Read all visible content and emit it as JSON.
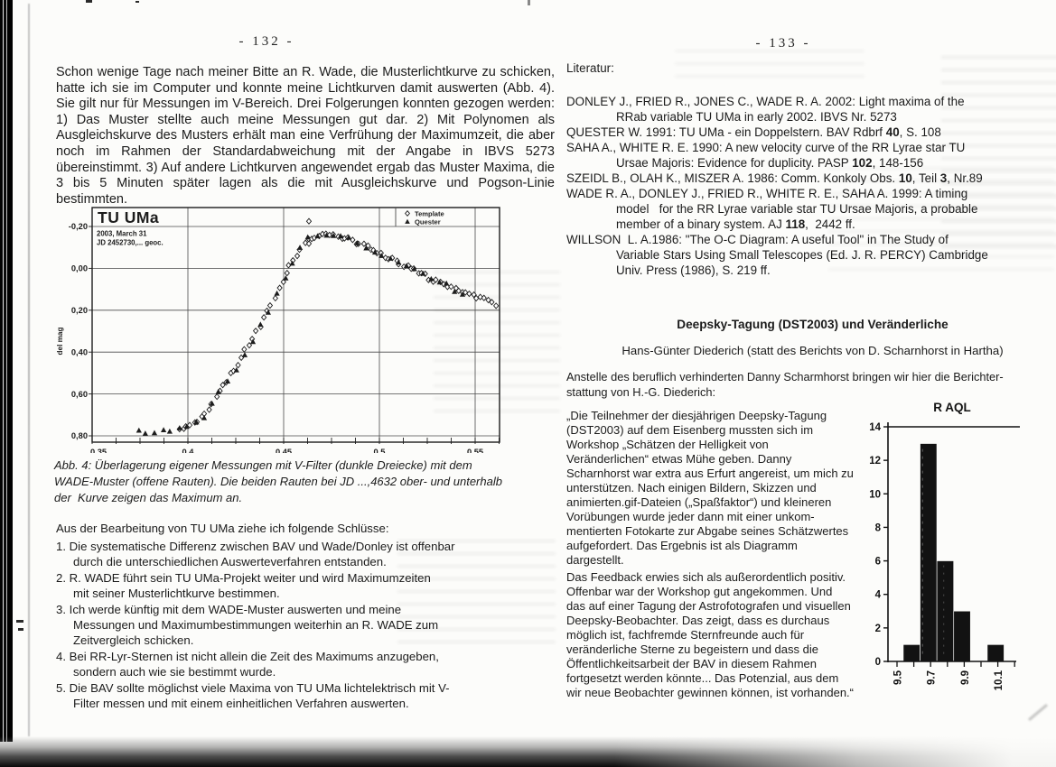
{
  "page_left": {
    "page_number": "- 132 -",
    "intro_paragraph": "Schon wenige Tage nach meiner Bitte an R. Wade, die Musterlichtkurve zu schicken, hatte ich sie im Computer und konnte meine Lichtkurven damit auswerten (Abb. 4). Sie gilt nur für Messungen im V-Bereich. Drei Folgerungen konnten gezogen werden: 1) Das Muster stellte auch meine Messungen gut dar. 2) Mit Polynomen als Ausgleichskurve des Musters erhält man eine Verfrühung der Maximumzeit, die aber noch im Rahmen der Standardabweichung mit der Angabe in IBVS 5273 übereinstimmt. 3) Auf andere Lichtkurven angewendet ergab das Muster Maxima, die 3 bis 5 Minuten später lagen als die mit Ausgleichskurve und Pogson-Linie bestimmten.",
    "figure_caption": "Abb. 4: Überlagerung eigener Messungen mit V-Filter (dunkle Dreiecke) mit dem\nWADE-Muster (offene Rauten). Die beiden Rauten bei JD ...,4632 ober- und unterhalb\nder  Kurve zeigen das Maximum an.",
    "conclusions_intro": "Aus der Bearbeitung von TU UMa ziehe ich folgende Schlüsse:",
    "conclusions": [
      {
        "num": "1.",
        "text": "Die systematische Differenz zwischen BAV und Wade/Donley ist offenbar\ndurch die unterschiedlichen Auswerteverfahren entstanden."
      },
      {
        "num": "2.",
        "text": "R. WADE führt sein TU UMa-Projekt weiter und wird Maximumzeiten\nmit seiner Musterlichtkurve bestimmen."
      },
      {
        "num": "3.",
        "text": "Ich werde künftig mit dem WADE-Muster auswerten und meine\nMessungen und Maximumbestimmungen weiterhin an R. WADE zum\nZeitvergleich schicken."
      },
      {
        "num": "4.",
        "text": "Bei RR-Lyr-Sternen ist nicht allein die Zeit des Maximums anzugeben,\nsondern auch wie sie bestimmt wurde."
      },
      {
        "num": "5.",
        "text": "Die BAV sollte möglichst viele Maxima von TU UMa lichtelektrisch mit V-\nFilter messen und mit einem einheitlichen Verfahren auswerten."
      }
    ]
  },
  "page_right": {
    "page_number": "- 133 -",
    "literature_label": "Literatur:",
    "references": [
      [
        {
          "text": "DONLEY J., FRIED R., JONES C., WADE R. A. 2002: Light maxima of the\nRRab variable TU UMa in early 2002. IBVS Nr. 5273",
          "bold": false
        }
      ],
      [
        {
          "text": "QUESTER W. 1991: TU UMa - ein Doppelstern. BAV Rdbrf ",
          "bold": false
        },
        {
          "text": "40",
          "bold": true
        },
        {
          "text": ", S. 108",
          "bold": false
        }
      ],
      [
        {
          "text": "SAHA A., WHITE R. E. 1990: A new velocity curve of the RR Lyrae star TU\nUrsae Majoris: Evidence for duplicity. PASP ",
          "bold": false
        },
        {
          "text": "102",
          "bold": true
        },
        {
          "text": ", 148-156",
          "bold": false
        }
      ],
      [
        {
          "text": "SZEIDL B., OLAH K., MISZER A. 1986: Comm. Konkoly Obs. ",
          "bold": false
        },
        {
          "text": "10",
          "bold": true
        },
        {
          "text": ", Teil ",
          "bold": false
        },
        {
          "text": "3",
          "bold": true
        },
        {
          "text": ", Nr.89",
          "bold": false
        }
      ],
      [
        {
          "text": "WADE R. A., DONLEY J., FRIED R., WHITE R. E., SAHA A. 1999: A timing\nmodel   for the RR Lyrae variable star TU Ursae Majoris, a probable\nmember of a binary system. AJ ",
          "bold": false
        },
        {
          "text": "118",
          "bold": true
        },
        {
          "text": ",  2442 ff.",
          "bold": false
        }
      ],
      [
        {
          "text": "WILLSON  L. A.1986: \"The O-C Diagram: A useful Tool\" in The Study of\nVariable Stars Using Small Telescopes (Ed. J. R. PERCY) Cambridge\nUniv. Press (1986), S. 219 ff.",
          "bold": false
        }
      ]
    ],
    "section_heading": "Deepsky-Tagung (DST2003) und Veränderliche",
    "section_subheading": "Hans-Günter Diederich (statt des Berichts von D. Scharnhorst in Hartha)",
    "lead_paragraph": "Anstelle des beruflich verhinderten Danny Scharmhorst bringen wir hier die Berichter-\nstattung von H.-G. Diederich:",
    "quote_paragraph_1": "„Die Teilnehmer der diesjährigen Deepsky-Tagung\n(DST2003) auf dem Eisenberg mussten sich im\nWorkshop „Schätzen der Helligkeit von\nVeränderlichen“ etwas Mühe geben. Danny\nScharnhorst war extra aus Erfurt angereist, um mich zu\nunterstützen. Nach einigen Bildern, Skizzen und\nanimierten.gif-Dateien („Spaßfaktor“) und kleineren\nVorübungen wurde jeder dann mit einer unkom-\nmentierten Fotokarte zur Abgabe seines Schätzwertes\naufgefordert. Das Ergebnis ist als Diagramm\ndargestellt.",
    "quote_paragraph_2": "Das Feedback erwies sich als außerordentlich positiv.\nOffenbar war der Workshop gut angekommen. Und\ndas auf einer Tagung der Astrofotografen und visuellen\nDeepsky-Beobachter. Das zeigt, dass es durchaus\nmöglich ist, fachfremde Sternfreunde auch für\nveränderliche Sterne zu begeistern und dass die\nÖffentlichkeitsarbeit der BAV in diesem Rahmen\nfortgesetzt werden könnte... Das Potenzial, aus dem\nwir neue Beobachter gewinnen können, ist vorhanden.“"
  },
  "chart_data": [
    {
      "type": "scatter",
      "title": "TU UMa",
      "date_label": "2003, March 31",
      "jd_label": "JD 2452730,... geoc.",
      "ylabel": "del mag",
      "x_axis": {
        "range": [
          0.35,
          0.5627
        ],
        "ticks": [
          0.35,
          0.4,
          0.45,
          0.5,
          0.55
        ],
        "tick_labels": [
          "0,35",
          "0,4",
          "0,45",
          "0,5",
          "0,55"
        ],
        "minor_tick_step": 0.0125
      },
      "y_axis": {
        "range_top_to_bottom": [
          -0.29,
          0.835
        ],
        "ticks": [
          -0.2,
          0.0,
          0.2,
          0.4,
          0.6,
          0.8
        ],
        "tick_labels": [
          "-0,20",
          "0,00",
          "0,20",
          "0,40",
          "0,60",
          "0,80"
        ],
        "note": "magnitude difference, brighter (negative) at top"
      },
      "legend": [
        {
          "label": "Template",
          "marker": "diamond-open"
        },
        {
          "label": "Quester",
          "marker": "triangle-filled"
        }
      ],
      "curve_anchors": [
        [
          0.374,
          0.775
        ],
        [
          0.38,
          0.78
        ],
        [
          0.386,
          0.772
        ],
        [
          0.392,
          0.776
        ],
        [
          0.396,
          0.768
        ],
        [
          0.4,
          0.752
        ],
        [
          0.404,
          0.733
        ],
        [
          0.408,
          0.705
        ],
        [
          0.412,
          0.66
        ],
        [
          0.416,
          0.605
        ],
        [
          0.42,
          0.545
        ],
        [
          0.424,
          0.487
        ],
        [
          0.428,
          0.43
        ],
        [
          0.432,
          0.365
        ],
        [
          0.436,
          0.3
        ],
        [
          0.44,
          0.235
        ],
        [
          0.444,
          0.165
        ],
        [
          0.448,
          0.09
        ],
        [
          0.452,
          0.015
        ],
        [
          0.456,
          -0.055
        ],
        [
          0.46,
          -0.11
        ],
        [
          0.464,
          -0.145
        ],
        [
          0.468,
          -0.163
        ],
        [
          0.472,
          -0.168
        ],
        [
          0.476,
          -0.162
        ],
        [
          0.48,
          -0.15
        ],
        [
          0.485,
          -0.135
        ],
        [
          0.49,
          -0.115
        ],
        [
          0.495,
          -0.095
        ],
        [
          0.5,
          -0.072
        ],
        [
          0.505,
          -0.05
        ],
        [
          0.51,
          -0.028
        ],
        [
          0.515,
          -0.005
        ],
        [
          0.52,
          0.018
        ],
        [
          0.525,
          0.04
        ],
        [
          0.53,
          0.062
        ],
        [
          0.535,
          0.082
        ],
        [
          0.54,
          0.1
        ],
        [
          0.545,
          0.118
        ],
        [
          0.55,
          0.135
        ],
        [
          0.555,
          0.152
        ],
        [
          0.56,
          0.168
        ],
        [
          0.5635,
          0.178
        ]
      ],
      "series": [
        {
          "name": "Template",
          "marker": "diamond-open",
          "x_start": 0.3955,
          "x_end": 0.5625,
          "x_step": 0.00192,
          "y_jitter": 0.011
        },
        {
          "name": "Quester",
          "marker": "triangle-filled",
          "x_start": 0.374,
          "x_end": 0.5455,
          "x_step": 0.00425,
          "y_jitter": 0.013
        }
      ],
      "max_outlier_diamonds": [
        [
          0.4632,
          -0.225
        ],
        [
          0.4632,
          -0.118
        ]
      ]
    },
    {
      "type": "bar",
      "title": "R AQL",
      "bin_centers": [
        9.6,
        9.7,
        9.8,
        9.9,
        10.0,
        10.1
      ],
      "values": [
        1,
        13,
        6,
        3,
        0,
        1
      ],
      "ylim": [
        0,
        14
      ],
      "y_ticks": [
        0,
        2,
        4,
        6,
        8,
        10,
        12,
        14
      ],
      "x_ticks": [
        9.5,
        9.6,
        9.7,
        9.8,
        9.9,
        10.0,
        10.1,
        10.2
      ],
      "x_tick_labels_shown": [
        "9.5",
        "9.7",
        "9.9",
        "10.1"
      ]
    }
  ]
}
